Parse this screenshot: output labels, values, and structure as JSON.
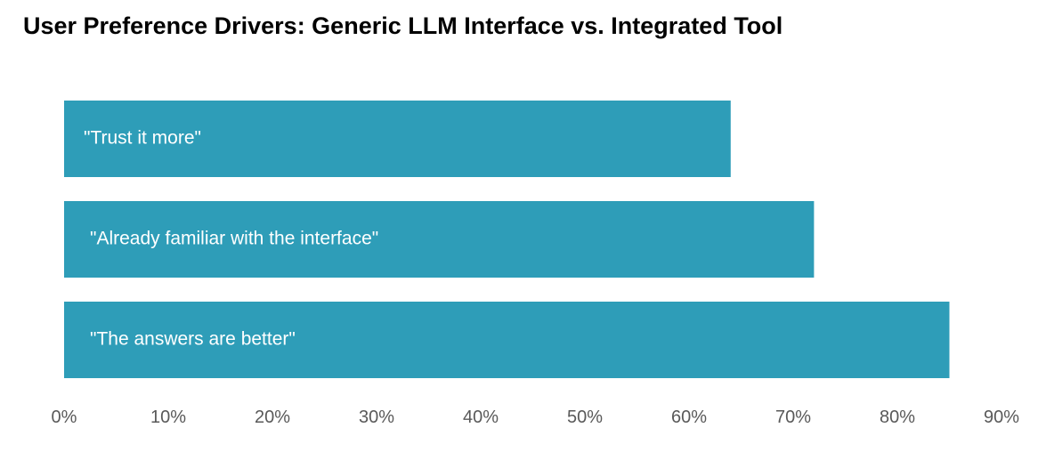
{
  "chart_data": {
    "type": "bar",
    "orientation": "horizontal",
    "title": "User Preference Drivers: Generic LLM Interface vs. Integrated Tool",
    "xlabel": "",
    "ylabel": "",
    "categories": [
      "\"Trust it more\"",
      "\"Already familiar with the interface\"",
      "\"The answers are better\""
    ],
    "values": [
      64,
      72,
      85
    ],
    "xlim": [
      0,
      90
    ],
    "ticks": [
      0,
      10,
      20,
      30,
      40,
      50,
      60,
      70,
      80,
      90
    ],
    "tick_labels": [
      "0%",
      "10%",
      "20%",
      "30%",
      "40%",
      "50%",
      "60%",
      "70%",
      "80%",
      "90%"
    ],
    "grid": false,
    "legend": "none",
    "bar_color": "#2E9DB8",
    "label_color": "#FFFFFF",
    "tick_color": "#595959"
  }
}
